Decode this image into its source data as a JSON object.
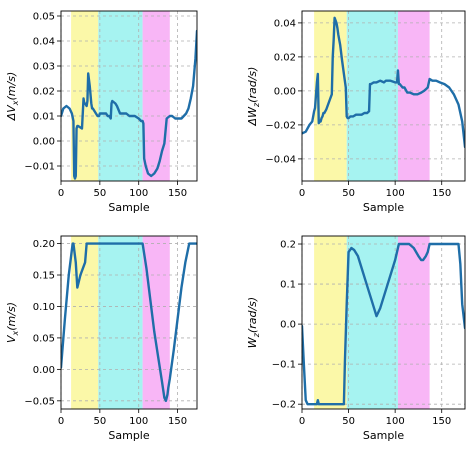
{
  "chart_data": [
    {
      "type": "line",
      "xlabel": "Sample",
      "ylabel_main": "ΔV",
      "ylabel_sub": "x",
      "ylabel_unit": "(m/s)",
      "xlim": [
        0,
        175
      ],
      "ylim": [
        -0.016,
        0.052
      ],
      "xticks": [
        0,
        50,
        100,
        150
      ],
      "yticks": [
        -0.01,
        0.0,
        0.01,
        0.02,
        0.03,
        0.04,
        0.05
      ],
      "ytick_labels": [
        "−0.01",
        "0.00",
        "0.01",
        "0.02",
        "0.03",
        "0.04",
        "0.05"
      ],
      "bands": [
        {
          "x0": 13,
          "x1": 48,
          "color": "#fbf8a8"
        },
        {
          "x0": 48,
          "x1": 105,
          "color": "#a6f3f1"
        },
        {
          "x0": 105,
          "x1": 140,
          "color": "#f8b6f6"
        }
      ],
      "series": [
        {
          "color": "#1f6ea8",
          "x": [
            0,
            3,
            7,
            11,
            14,
            16,
            17,
            18,
            19,
            20,
            21,
            22,
            27,
            29,
            30,
            31,
            33,
            34,
            35,
            37,
            39,
            40,
            41,
            43,
            45,
            47,
            48,
            49,
            50,
            52,
            55,
            58,
            60,
            62,
            64,
            65,
            66,
            70,
            72,
            76,
            78,
            80,
            84,
            88,
            90,
            95,
            100,
            103,
            105,
            106,
            107,
            109,
            112,
            116,
            120,
            124,
            127,
            130,
            133,
            136,
            140,
            143,
            147,
            151,
            155,
            158,
            161,
            164,
            167,
            170,
            173,
            175
          ],
          "y": [
            0.01,
            0.013,
            0.014,
            0.013,
            0.011,
            0.008,
            -0.014,
            -0.015,
            -0.014,
            0.005,
            0.006,
            0.006,
            0.005,
            0.017,
            0.015,
            0.015,
            0.014,
            0.016,
            0.027,
            0.022,
            0.015,
            0.013,
            0.013,
            0.012,
            0.011,
            0.01,
            0.01,
            0.01,
            0.011,
            0.011,
            0.011,
            0.011,
            0.01,
            0.01,
            0.009,
            0.015,
            0.016,
            0.015,
            0.014,
            0.011,
            0.011,
            0.011,
            0.011,
            0.01,
            0.01,
            0.01,
            0.009,
            0.008,
            0.008,
            0.007,
            -0.007,
            -0.01,
            -0.013,
            -0.014,
            -0.013,
            -0.011,
            -0.008,
            -0.004,
            -0.001,
            0.009,
            0.01,
            0.01,
            0.009,
            0.009,
            0.009,
            0.01,
            0.011,
            0.013,
            0.017,
            0.022,
            0.033,
            0.044
          ]
        }
      ]
    },
    {
      "type": "line",
      "xlabel": "Sample",
      "ylabel_main": "ΔW",
      "ylabel_sub": "z",
      "ylabel_unit": "(rad/s)",
      "xlim": [
        0,
        175
      ],
      "ylim": [
        -0.053,
        0.047
      ],
      "xticks": [
        0,
        50,
        100,
        150
      ],
      "yticks": [
        -0.04,
        -0.02,
        0.0,
        0.02,
        0.04
      ],
      "ytick_labels": [
        "−0.04",
        "−0.02",
        "0.00",
        "0.02",
        "0.04"
      ],
      "bands": [
        {
          "x0": 13,
          "x1": 48,
          "color": "#fbf8a8"
        },
        {
          "x0": 48,
          "x1": 103,
          "color": "#a6f3f1"
        },
        {
          "x0": 103,
          "x1": 137,
          "color": "#f8b6f6"
        }
      ],
      "series": [
        {
          "color": "#1f6ea8",
          "x": [
            0,
            4,
            8,
            11,
            13,
            14,
            16,
            17,
            18,
            19,
            20,
            21,
            22,
            23,
            24,
            26,
            28,
            30,
            32,
            33,
            34,
            35,
            37,
            38,
            39,
            41,
            43,
            45,
            47,
            48,
            49,
            50,
            52,
            55,
            58,
            61,
            64,
            67,
            70,
            72,
            73,
            74,
            77,
            80,
            84,
            88,
            90,
            95,
            100,
            102,
            103,
            104,
            105,
            108,
            110,
            113,
            116,
            120,
            124,
            128,
            131,
            133,
            135,
            137,
            140,
            144,
            148,
            153,
            158,
            163,
            168,
            172,
            175
          ],
          "y": [
            -0.025,
            -0.024,
            -0.02,
            -0.018,
            -0.012,
            -0.01,
            0.005,
            0.01,
            -0.019,
            -0.018,
            -0.018,
            -0.016,
            -0.015,
            -0.013,
            -0.013,
            -0.011,
            -0.008,
            -0.005,
            -0.002,
            0.02,
            0.03,
            0.043,
            0.04,
            0.037,
            0.033,
            0.027,
            0.018,
            0.01,
            0.002,
            -0.015,
            -0.016,
            -0.016,
            -0.015,
            -0.015,
            -0.014,
            -0.014,
            -0.014,
            -0.013,
            -0.013,
            -0.012,
            0.004,
            0.004,
            0.005,
            0.005,
            0.006,
            0.005,
            0.006,
            0.006,
            0.005,
            0.005,
            0.012,
            0.004,
            0.004,
            0.002,
            0.002,
            -0.001,
            -0.001,
            -0.002,
            -0.002,
            -0.001,
            0.0,
            0.001,
            0.002,
            0.007,
            0.006,
            0.006,
            0.005,
            0.004,
            0.002,
            -0.002,
            -0.008,
            -0.018,
            -0.033
          ]
        }
      ]
    },
    {
      "type": "line",
      "xlabel": "Sample",
      "ylabel_main": "V",
      "ylabel_sub": "x",
      "ylabel_unit": "(m/s)",
      "xlim": [
        0,
        175
      ],
      "ylim": [
        -0.063,
        0.212
      ],
      "xticks": [
        0,
        50,
        100,
        150
      ],
      "yticks": [
        -0.05,
        0.0,
        0.05,
        0.1,
        0.15,
        0.2
      ],
      "ytick_labels": [
        "−0.05",
        "0.00",
        "0.05",
        "0.10",
        "0.15",
        "0.20"
      ],
      "bands": [
        {
          "x0": 13,
          "x1": 48,
          "color": "#fbf8a8"
        },
        {
          "x0": 48,
          "x1": 105,
          "color": "#a6f3f1"
        },
        {
          "x0": 105,
          "x1": 140,
          "color": "#f8b6f6"
        }
      ],
      "series": [
        {
          "color": "#1f6ea8",
          "x": [
            0,
            5,
            10,
            13,
            15,
            16,
            18,
            19,
            21,
            25,
            28,
            31,
            33,
            35,
            36,
            38,
            42,
            46,
            50,
            60,
            70,
            80,
            90,
            100,
            105,
            110,
            115,
            120,
            125,
            130,
            133,
            135,
            137,
            138,
            140,
            145,
            150,
            155,
            160,
            165,
            170,
            175
          ],
          "y": [
            0.003,
            0.08,
            0.15,
            0.18,
            0.2,
            0.2,
            0.18,
            0.17,
            0.13,
            0.15,
            0.16,
            0.17,
            0.2,
            0.2,
            0.2,
            0.2,
            0.2,
            0.2,
            0.2,
            0.2,
            0.2,
            0.2,
            0.2,
            0.2,
            0.2,
            0.16,
            0.11,
            0.06,
            0.02,
            -0.02,
            -0.045,
            -0.05,
            -0.04,
            -0.03,
            -0.015,
            0.03,
            0.08,
            0.13,
            0.17,
            0.2,
            0.2,
            0.2
          ]
        }
      ]
    },
    {
      "type": "line",
      "xlabel": "Sample",
      "ylabel_main": "W",
      "ylabel_sub": "z",
      "ylabel_unit": "(rad/s)",
      "xlim": [
        0,
        175
      ],
      "ylim": [
        -0.212,
        0.22
      ],
      "xticks": [
        0,
        50,
        100,
        150
      ],
      "yticks": [
        -0.2,
        -0.1,
        0.0,
        0.1,
        0.2
      ],
      "ytick_labels": [
        "−0.2",
        "−0.1",
        "0.0",
        "0.1",
        "0.2"
      ],
      "bands": [
        {
          "x0": 13,
          "x1": 48,
          "color": "#fbf8a8"
        },
        {
          "x0": 48,
          "x1": 103,
          "color": "#a6f3f1"
        },
        {
          "x0": 103,
          "x1": 137,
          "color": "#f8b6f6"
        }
      ],
      "series": [
        {
          "color": "#1f6ea8",
          "x": [
            0,
            2,
            4,
            6,
            10,
            15,
            16,
            17,
            18,
            19,
            20,
            25,
            30,
            35,
            40,
            45,
            46,
            48,
            50,
            53,
            56,
            60,
            64,
            68,
            72,
            76,
            80,
            84,
            88,
            92,
            96,
            100,
            104,
            110,
            115,
            120,
            125,
            128,
            130,
            133,
            135,
            137,
            140,
            145,
            150,
            155,
            160,
            165,
            168,
            170,
            172,
            175
          ],
          "y": [
            -0.005,
            -0.1,
            -0.19,
            -0.2,
            -0.2,
            -0.2,
            -0.2,
            -0.19,
            -0.2,
            -0.2,
            -0.2,
            -0.2,
            -0.2,
            -0.2,
            -0.2,
            -0.2,
            -0.1,
            0.05,
            0.18,
            0.19,
            0.185,
            0.17,
            0.14,
            0.11,
            0.08,
            0.05,
            0.02,
            0.04,
            0.07,
            0.1,
            0.13,
            0.16,
            0.2,
            0.2,
            0.2,
            0.19,
            0.17,
            0.16,
            0.16,
            0.17,
            0.18,
            0.2,
            0.2,
            0.2,
            0.2,
            0.2,
            0.2,
            0.2,
            0.2,
            0.15,
            0.05,
            -0.01
          ]
        }
      ]
    }
  ]
}
